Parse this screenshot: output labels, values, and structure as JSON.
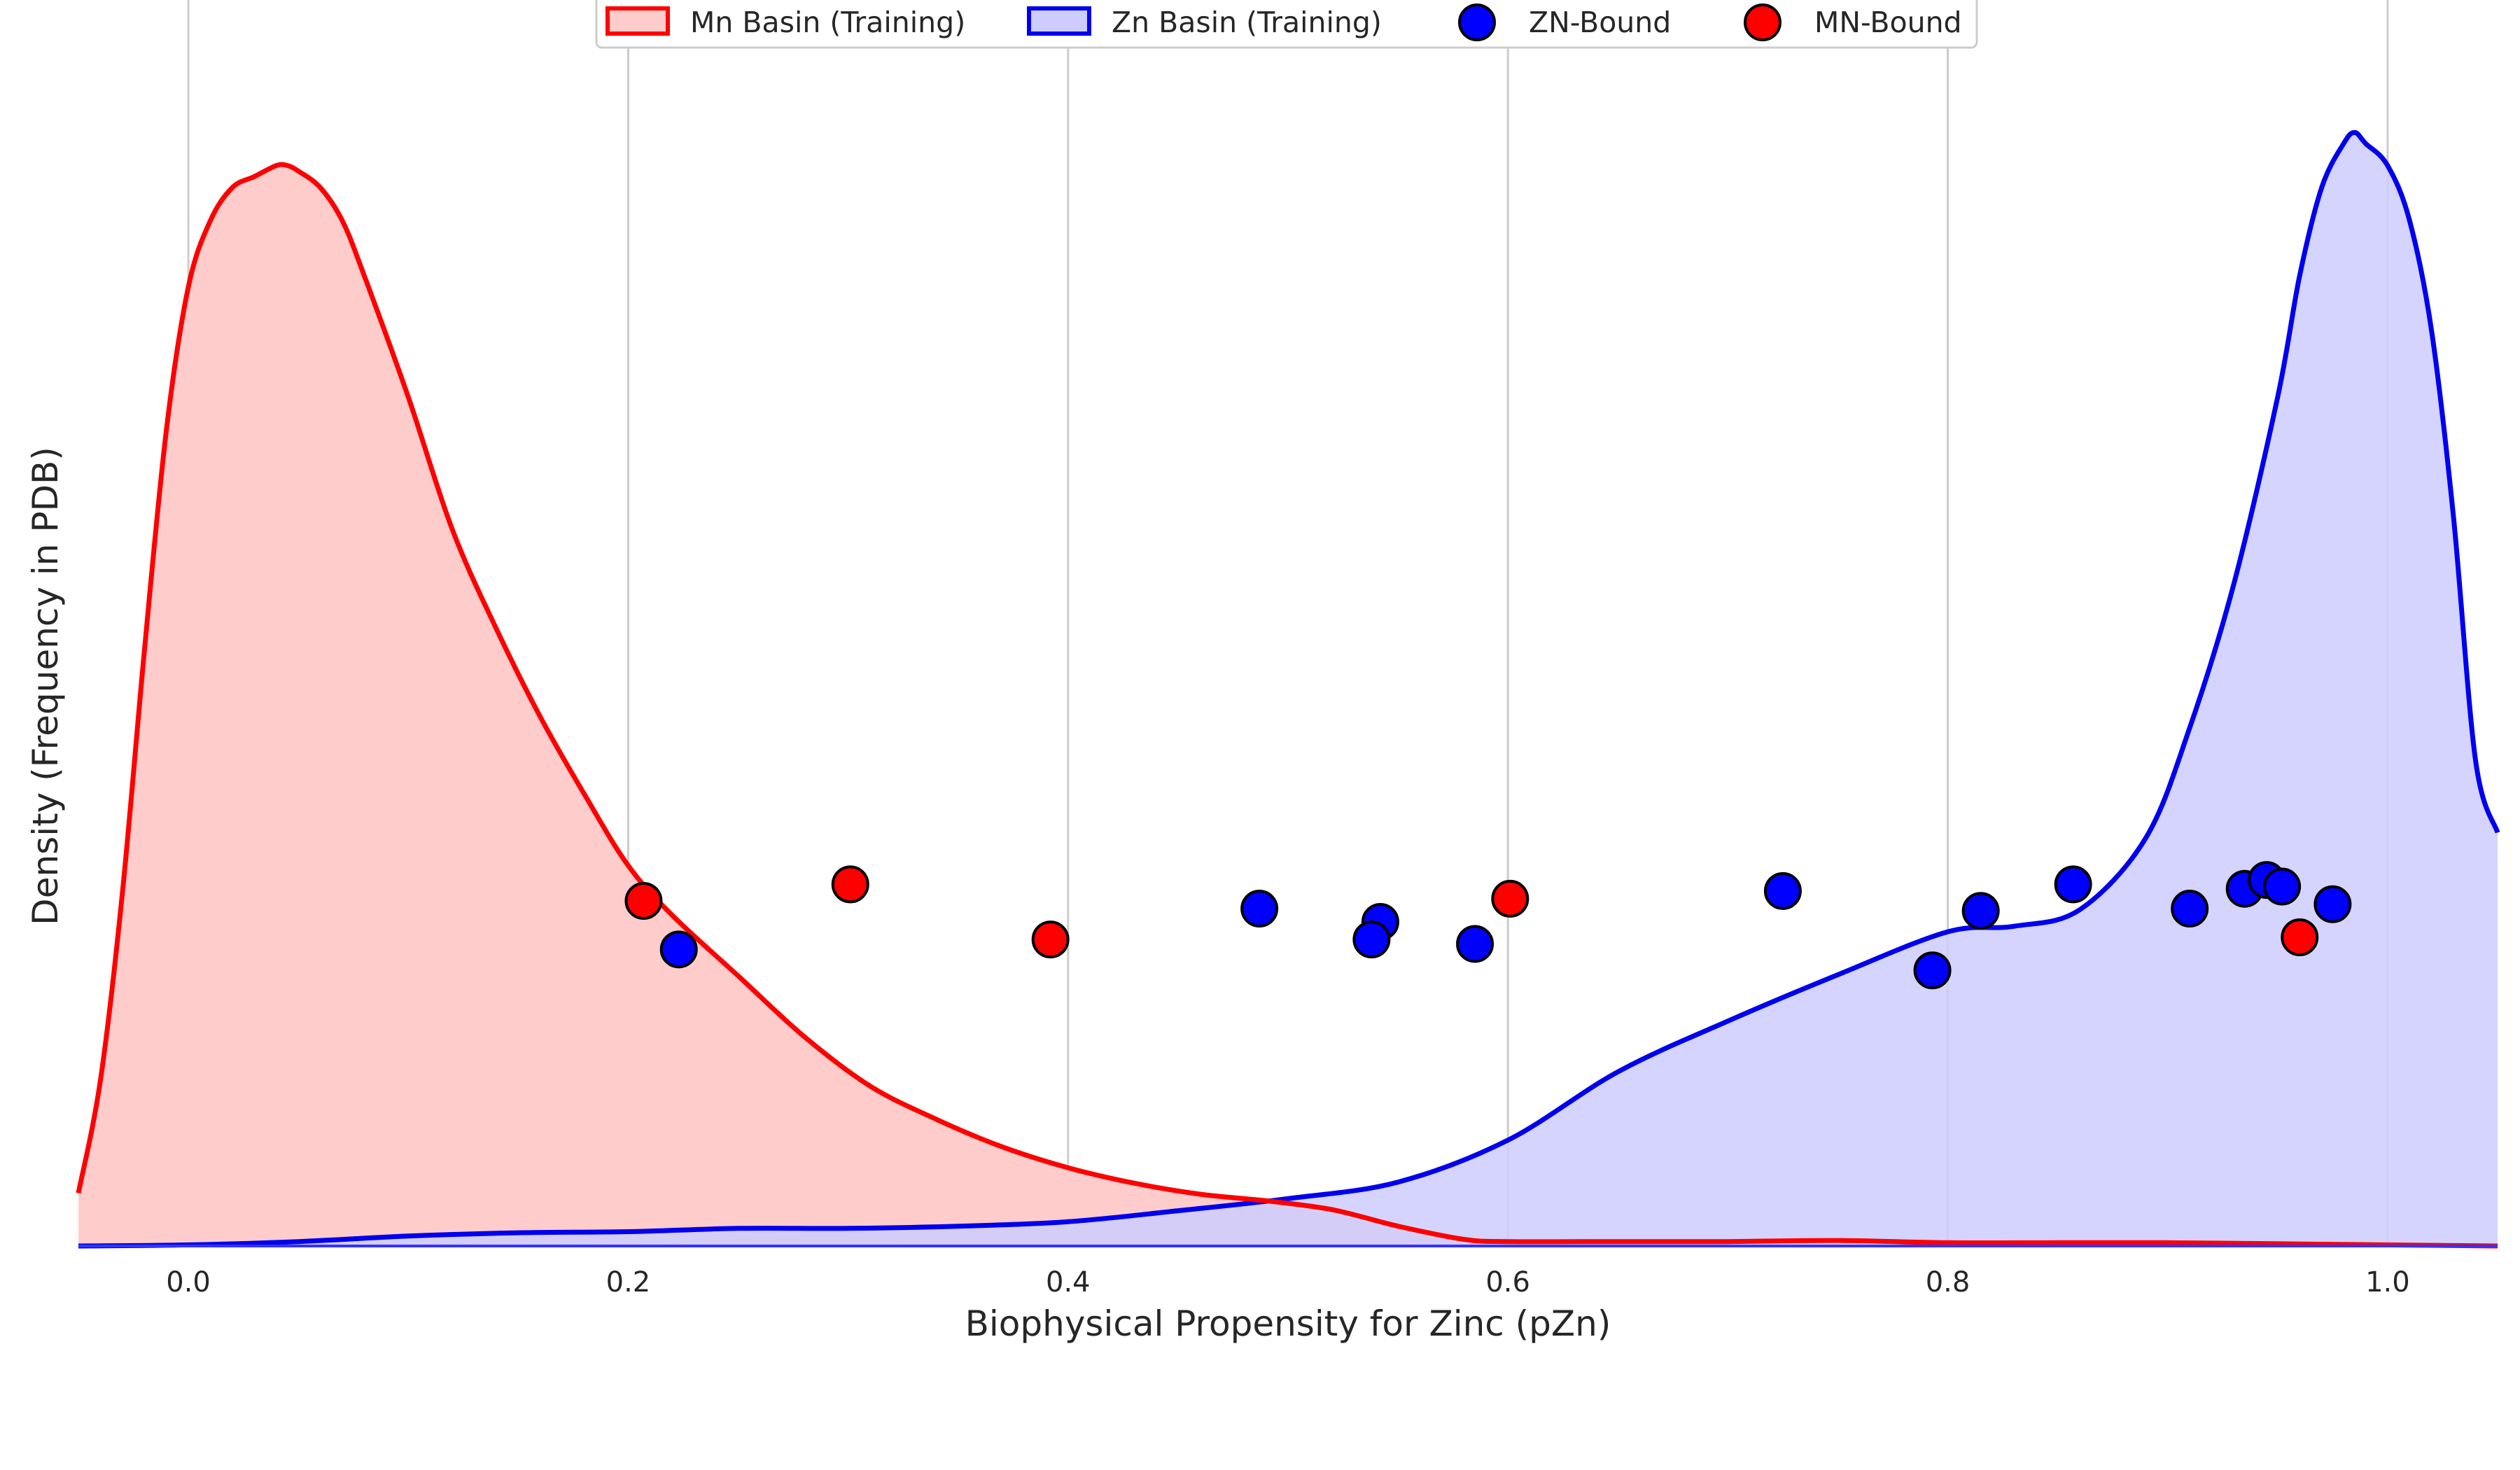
{
  "chart_data": {
    "type": "area",
    "title": "",
    "xlabel": "Biophysical Propensity for Zinc (pZn)",
    "ylabel": "Density (Frequency in PDB)",
    "xlim": [
      -0.05,
      1.05
    ],
    "ylim": [
      0,
      1.0
    ],
    "xticks": [
      0.0,
      0.2,
      0.4,
      0.6,
      0.8,
      1.0
    ],
    "xtick_labels": [
      "0.0",
      "0.2",
      "0.4",
      "0.6",
      "0.8",
      "1.0"
    ],
    "yticks_shown": false,
    "grid": "vertical",
    "legend_position": "top-center",
    "colors": {
      "mn": "#ff0000",
      "mn_fill": "#ffcccc",
      "zn": "#0000ee",
      "zn_fill": "#ccccff",
      "grid": "#cccccc",
      "marker_edge": "#000000",
      "axis": "#3333ff"
    },
    "legend": [
      {
        "label": "Mn Basin (Training)",
        "kind": "patch",
        "color": "#ff0000",
        "fill": "#ffcccc"
      },
      {
        "label": "Zn Basin (Training)",
        "kind": "patch",
        "color": "#0000ee",
        "fill": "#ccccff"
      },
      {
        "label": "ZN-Bound",
        "kind": "marker",
        "color": "#0000ff"
      },
      {
        "label": "MN-Bound",
        "kind": "marker",
        "color": "#ff0000"
      }
    ],
    "series": [
      {
        "name": "Mn Basin (Training)",
        "kind": "density",
        "x": [
          -0.05,
          -0.04,
          -0.03,
          -0.02,
          -0.01,
          0.0,
          0.01,
          0.02,
          0.03,
          0.04,
          0.045,
          0.05,
          0.06,
          0.07,
          0.08,
          0.1,
          0.12,
          0.14,
          0.16,
          0.18,
          0.2,
          0.22,
          0.25,
          0.28,
          0.31,
          0.34,
          0.37,
          0.4,
          0.43,
          0.46,
          0.49,
          0.52,
          0.55,
          0.58,
          0.6,
          0.65,
          0.7,
          0.75,
          0.8,
          0.85,
          0.9,
          0.95,
          1.0,
          1.05
        ],
        "y": [
          0.048,
          0.15,
          0.32,
          0.54,
          0.74,
          0.87,
          0.93,
          0.96,
          0.97,
          0.98,
          0.98,
          0.975,
          0.96,
          0.93,
          0.88,
          0.77,
          0.65,
          0.56,
          0.48,
          0.41,
          0.345,
          0.3,
          0.245,
          0.19,
          0.145,
          0.115,
          0.09,
          0.071,
          0.057,
          0.047,
          0.041,
          0.033,
          0.018,
          0.006,
          0.004,
          0.004,
          0.004,
          0.005,
          0.003,
          0.003,
          0.003,
          0.002,
          0.001,
          0.0
        ]
      },
      {
        "name": "Zn Basin (Training)",
        "kind": "density",
        "x": [
          -0.05,
          0.0,
          0.05,
          0.1,
          0.15,
          0.2,
          0.25,
          0.3,
          0.35,
          0.4,
          0.45,
          0.5,
          0.55,
          0.6,
          0.65,
          0.7,
          0.75,
          0.8,
          0.83,
          0.86,
          0.89,
          0.91,
          0.93,
          0.95,
          0.96,
          0.97,
          0.98,
          0.985,
          0.99,
          1.0,
          1.01,
          1.02,
          1.03,
          1.04,
          1.05
        ],
        "y": [
          0.0,
          0.001,
          0.004,
          0.009,
          0.012,
          0.013,
          0.016,
          0.016,
          0.018,
          0.022,
          0.032,
          0.043,
          0.058,
          0.096,
          0.158,
          0.204,
          0.246,
          0.285,
          0.29,
          0.305,
          0.37,
          0.47,
          0.6,
          0.77,
          0.88,
          0.96,
          1.0,
          1.01,
          1.0,
          0.98,
          0.93,
          0.83,
          0.66,
          0.44,
          0.375
        ]
      },
      {
        "name": "ZN-Bound",
        "kind": "scatter",
        "color": "#0000ff",
        "x": [
          0.223,
          0.487,
          0.542,
          0.538,
          0.585,
          0.725,
          0.793,
          0.815,
          0.857,
          0.91,
          0.935,
          0.945,
          0.952,
          0.975
        ],
        "y": [
          0.269,
          0.306,
          0.294,
          0.278,
          0.274,
          0.322,
          0.25,
          0.304,
          0.328,
          0.306,
          0.324,
          0.332,
          0.326,
          0.31
        ]
      },
      {
        "name": "MN-Bound",
        "kind": "scatter",
        "color": "#ff0000",
        "x": [
          0.207,
          0.301,
          0.392,
          0.601,
          0.96
        ],
        "y": [
          0.313,
          0.328,
          0.278,
          0.315,
          0.28
        ]
      }
    ]
  }
}
